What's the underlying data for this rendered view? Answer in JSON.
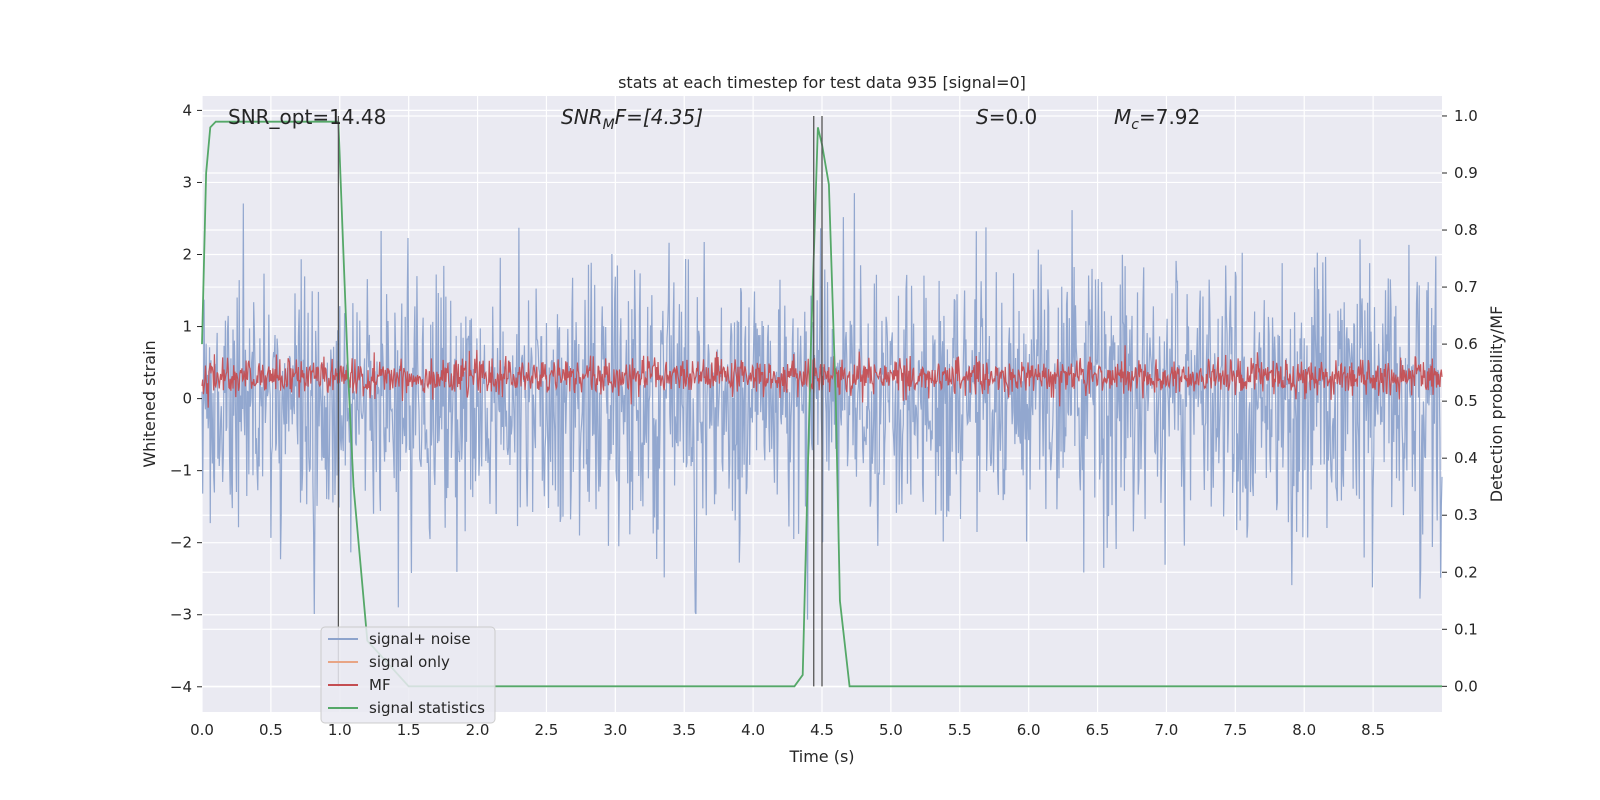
{
  "chart_data": {
    "type": "line",
    "title": "stats at each timestep for test data 935 [signal=0]",
    "xlabel": "Time (s)",
    "ylabel": "Whitened strain",
    "ylabel_right": "Detection probability/MF",
    "xlim": [
      0.0,
      9.0
    ],
    "ylim": [
      -4.35,
      4.2
    ],
    "ylim_right": [
      -0.045,
      1.035
    ],
    "x_ticks": [
      0.0,
      0.5,
      1.0,
      1.5,
      2.0,
      2.5,
      3.0,
      3.5,
      4.0,
      4.5,
      5.0,
      5.5,
      6.0,
      6.5,
      7.0,
      7.5,
      8.0,
      8.5
    ],
    "x_tick_labels": [
      "0.0",
      "0.5",
      "1.0",
      "1.5",
      "2.0",
      "2.5",
      "3.0",
      "3.5",
      "4.0",
      "4.5",
      "5.0",
      "5.5",
      "6.0",
      "6.5",
      "7.0",
      "7.5",
      "8.0",
      "8.5"
    ],
    "y_ticks": [
      -4,
      -3,
      -2,
      -1,
      0,
      1,
      2,
      3,
      4
    ],
    "y_tick_labels": [
      "−4",
      "−3",
      "−2",
      "−1",
      "0",
      "1",
      "2",
      "3",
      "4"
    ],
    "y_ticks_right": [
      0.0,
      0.1,
      0.2,
      0.3,
      0.4,
      0.5,
      0.6,
      0.7,
      0.8,
      0.9,
      1.0
    ],
    "y_tick_labels_right": [
      "0.0",
      "0.1",
      "0.2",
      "0.3",
      "0.4",
      "0.5",
      "0.6",
      "0.7",
      "0.8",
      "0.9",
      "1.0"
    ],
    "grid": true,
    "legend_position": "lower-left",
    "annotations": {
      "snr_opt": "SNR_opt=14.48",
      "snr_mf_main": "SNR",
      "snr_mf_sub": "M",
      "snr_mf_rest": "F=[4.35]",
      "s_italic": "S",
      "s_rest": "=0.0",
      "mc_main": "M",
      "mc_sub": "c",
      "mc_rest": "=7.92"
    },
    "vlines_x": [
      0.99,
      4.44,
      4.5
    ],
    "series": [
      {
        "name": "signal+ noise",
        "color": "#8da3cc",
        "axis": "left",
        "sample_rate": 200,
        "duration": 9.0,
        "std": 0.95,
        "seed": 935
      },
      {
        "name": "signal only",
        "color": "#e8a585",
        "axis": "left",
        "x": [],
        "y": []
      },
      {
        "name": "MF",
        "color": "#c44e52",
        "axis": "left",
        "sample_rate": 200,
        "duration": 9.0,
        "mean": 0.3,
        "std": 0.13,
        "seed": 42
      },
      {
        "name": "signal statistics",
        "color": "#55a868",
        "axis": "right",
        "x": [
          0.0,
          0.03,
          0.06,
          0.1,
          0.2,
          0.5,
          0.8,
          0.99,
          1.02,
          1.06,
          1.1,
          1.2,
          1.5,
          2.0,
          3.0,
          4.0,
          4.3,
          4.36,
          4.42,
          4.47,
          4.5,
          4.55,
          4.6,
          4.63,
          4.7,
          5.0,
          6.0,
          7.0,
          8.0,
          9.0
        ],
        "y": [
          0.6,
          0.9,
          0.98,
          0.99,
          0.99,
          0.99,
          0.99,
          0.99,
          0.8,
          0.55,
          0.35,
          0.08,
          0.0,
          0.0,
          0.0,
          0.0,
          0.0,
          0.02,
          0.6,
          0.98,
          0.95,
          0.88,
          0.5,
          0.15,
          0.0,
          0.0,
          0.0,
          0.0,
          0.0,
          0.0
        ]
      }
    ]
  }
}
